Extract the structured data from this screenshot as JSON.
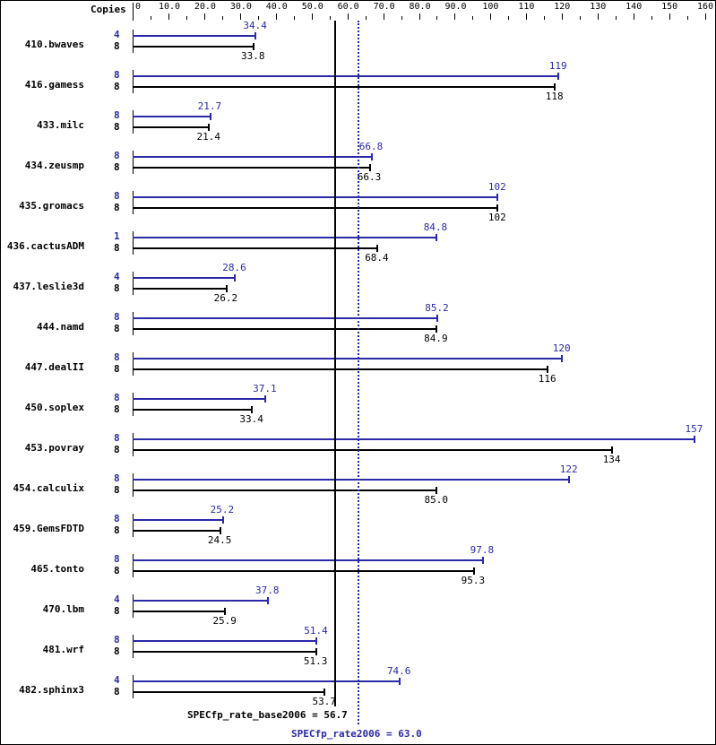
{
  "chart_data": {
    "type": "bar",
    "orientation": "horizontal",
    "title": "",
    "xlabel": "",
    "ylabel": "",
    "axis_header": "Copies",
    "xlim": [
      0,
      160
    ],
    "x_tick_labels": [
      "0",
      "10.0",
      "20.0",
      "30.0",
      "40.0",
      "50.0",
      "60.0",
      "70.0",
      "80.0",
      "90.0",
      "100",
      "110",
      "120",
      "130",
      "140",
      "150",
      "160"
    ],
    "x_ticks": [
      0,
      10,
      20,
      30,
      40,
      50,
      60,
      70,
      80,
      90,
      100,
      110,
      120,
      130,
      140,
      150,
      160
    ],
    "grid": false,
    "colors": {
      "peak": "#2a2aa8",
      "base": "#000000"
    },
    "categories": [
      "410.bwaves",
      "416.gamess",
      "433.milc",
      "434.zeusmp",
      "435.gromacs",
      "436.cactusADM",
      "437.leslie3d",
      "444.namd",
      "447.dealII",
      "450.soplex",
      "453.povray",
      "454.calculix",
      "459.GemsFDTD",
      "465.tonto",
      "470.lbm",
      "481.wrf",
      "482.sphinx3"
    ],
    "series": [
      {
        "name": "peak",
        "copies": [
          "4",
          "8",
          "8",
          "8",
          "8",
          "1",
          "4",
          "8",
          "8",
          "8",
          "8",
          "8",
          "8",
          "8",
          "4",
          "8",
          "4"
        ],
        "values": [
          34.4,
          119,
          21.7,
          66.8,
          102,
          84.8,
          28.6,
          85.2,
          120,
          37.1,
          157,
          122,
          25.2,
          97.8,
          37.8,
          51.4,
          74.6
        ],
        "labels": [
          "34.4",
          "119",
          "21.7",
          "66.8",
          "102",
          "84.8",
          "28.6",
          "85.2",
          "120",
          "37.1",
          "157",
          "122",
          "25.2",
          "97.8",
          "37.8",
          "51.4",
          "74.6"
        ]
      },
      {
        "name": "base",
        "copies": [
          "8",
          "8",
          "8",
          "8",
          "8",
          "8",
          "8",
          "8",
          "8",
          "8",
          "8",
          "8",
          "8",
          "8",
          "8",
          "8",
          "8"
        ],
        "values": [
          33.8,
          118,
          21.4,
          66.3,
          102,
          68.4,
          26.2,
          84.9,
          116,
          33.4,
          134,
          85.0,
          24.5,
          95.3,
          25.9,
          51.3,
          53.7
        ],
        "labels": [
          "33.8",
          "118",
          "21.4",
          "66.3",
          "102",
          "68.4",
          "26.2",
          "84.9",
          "116",
          "33.4",
          "134",
          "85.0",
          "24.5",
          "95.3",
          "25.9",
          "51.3",
          "53.7"
        ]
      }
    ],
    "reference_lines": [
      {
        "name": "SPECfp_rate_base2006",
        "value": 56.7,
        "style": "solid",
        "color": "#000000",
        "label": "SPECfp_rate_base2006 = 56.7"
      },
      {
        "name": "SPECfp_rate2006",
        "value": 63.0,
        "style": "dotted",
        "color": "#2a2aa8",
        "label": "SPECfp_rate2006 = 63.0"
      }
    ]
  }
}
